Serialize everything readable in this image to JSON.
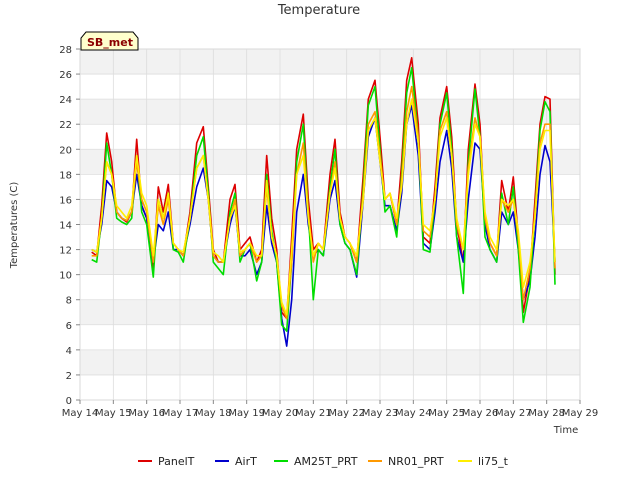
{
  "chart_data": {
    "type": "line",
    "title": "Temperature",
    "xlabel": "Time",
    "ylabel": "Temperatures (C)",
    "site_label": "SB_met",
    "x_ticks": [
      "May 14",
      "May 15",
      "May 16",
      "May 17",
      "May 18",
      "May 19",
      "May 20",
      "May 21",
      "May 22",
      "May 23",
      "May 24",
      "May 25",
      "May 26",
      "May 27",
      "May 28",
      "May 29"
    ],
    "xlim": [
      14,
      29
    ],
    "ylim": [
      0,
      28
    ],
    "y_ticks": [
      "0",
      "2",
      "4",
      "6",
      "8",
      "10",
      "12",
      "14",
      "16",
      "18",
      "20",
      "22",
      "24",
      "26",
      "28"
    ],
    "x": [
      14.35,
      14.5,
      14.65,
      14.8,
      14.95,
      15.1,
      15.25,
      15.4,
      15.55,
      15.7,
      15.85,
      16.0,
      16.2,
      16.35,
      16.5,
      16.65,
      16.8,
      16.95,
      17.1,
      17.3,
      17.5,
      17.7,
      17.85,
      18.0,
      18.15,
      18.3,
      18.5,
      18.65,
      18.8,
      18.95,
      19.1,
      19.3,
      19.45,
      19.6,
      19.75,
      19.9,
      20.05,
      20.2,
      20.35,
      20.5,
      20.7,
      20.85,
      21.0,
      21.15,
      21.3,
      21.5,
      21.65,
      21.8,
      21.95,
      22.1,
      22.3,
      22.5,
      22.65,
      22.85,
      23.0,
      23.15,
      23.3,
      23.5,
      23.65,
      23.8,
      23.95,
      24.15,
      24.3,
      24.5,
      24.65,
      24.8,
      25.0,
      25.15,
      25.3,
      25.5,
      25.65,
      25.85,
      26.0,
      26.15,
      26.3,
      26.5,
      26.65,
      26.85,
      27.0,
      27.15,
      27.3,
      27.5,
      27.65,
      27.8,
      27.95,
      28.1,
      28.25
    ],
    "series": [
      {
        "name": "PanelT",
        "color": "#dd0000",
        "values": [
          11.8,
          11.5,
          15.5,
          21.3,
          19.0,
          15.0,
          14.5,
          14.2,
          15.0,
          20.8,
          15.5,
          14.5,
          10.5,
          17.0,
          15.0,
          17.2,
          12.5,
          12.0,
          11.5,
          15.0,
          20.5,
          21.8,
          17.0,
          12.0,
          11.0,
          11.0,
          16.0,
          17.2,
          12.0,
          12.5,
          13.0,
          11.0,
          12.0,
          19.5,
          14.5,
          12.0,
          7.0,
          6.5,
          13.0,
          20.0,
          22.8,
          16.0,
          12.0,
          12.5,
          12.0,
          18.0,
          20.8,
          15.0,
          13.0,
          12.5,
          11.0,
          18.0,
          24.0,
          25.5,
          21.0,
          16.0,
          16.5,
          14.0,
          19.0,
          25.5,
          27.3,
          22.0,
          13.0,
          12.5,
          17.0,
          22.5,
          25.0,
          21.0,
          14.0,
          11.0,
          20.0,
          25.2,
          22.0,
          14.0,
          12.5,
          11.5,
          17.5,
          15.0,
          17.8,
          13.0,
          7.0,
          10.0,
          16.0,
          22.0,
          24.2,
          24.0,
          10.0
        ]
      },
      {
        "name": "AirT",
        "color": "#0000cc",
        "values": [
          12.0,
          11.8,
          14.0,
          17.5,
          17.0,
          15.0,
          14.5,
          14.3,
          15.0,
          18.0,
          15.5,
          14.5,
          11.0,
          14.0,
          13.5,
          15.0,
          12.0,
          12.0,
          11.5,
          14.0,
          17.0,
          18.5,
          16.0,
          11.5,
          11.0,
          11.0,
          14.0,
          15.5,
          11.5,
          11.5,
          12.0,
          10.0,
          11.0,
          15.5,
          12.5,
          11.0,
          6.5,
          4.3,
          8.0,
          15.0,
          18.0,
          14.0,
          11.5,
          12.0,
          11.5,
          16.0,
          17.5,
          14.0,
          12.5,
          12.0,
          9.8,
          16.0,
          21.0,
          22.5,
          19.0,
          15.5,
          15.5,
          13.5,
          16.5,
          22.0,
          23.5,
          19.5,
          12.5,
          12.0,
          15.0,
          19.0,
          21.5,
          18.5,
          13.0,
          11.0,
          16.0,
          20.5,
          20.0,
          14.0,
          12.0,
          11.0,
          15.0,
          14.0,
          15.0,
          12.0,
          8.0,
          9.5,
          13.0,
          18.0,
          20.3,
          19.0,
          11.0
        ]
      },
      {
        "name": "AM25T_PRT",
        "color": "#00dd00",
        "values": [
          11.2,
          11.0,
          14.5,
          20.5,
          18.0,
          14.5,
          14.2,
          14.0,
          14.5,
          19.5,
          15.0,
          14.0,
          9.8,
          16.0,
          14.5,
          16.5,
          12.0,
          11.8,
          11.0,
          14.5,
          19.5,
          21.0,
          16.5,
          11.0,
          10.5,
          10.0,
          15.0,
          16.5,
          11.0,
          12.0,
          12.5,
          9.5,
          11.0,
          18.0,
          13.5,
          11.0,
          6.0,
          5.5,
          11.0,
          19.0,
          22.0,
          15.0,
          8.0,
          12.0,
          11.5,
          17.0,
          20.0,
          14.0,
          12.5,
          12.0,
          10.0,
          17.0,
          23.5,
          25.0,
          20.0,
          15.0,
          15.5,
          13.0,
          18.0,
          24.5,
          26.5,
          21.0,
          12.0,
          11.8,
          16.0,
          22.0,
          24.5,
          20.0,
          13.0,
          8.5,
          19.0,
          24.8,
          21.0,
          13.0,
          12.0,
          11.0,
          16.5,
          14.0,
          17.0,
          12.0,
          6.2,
          9.0,
          15.0,
          21.5,
          23.8,
          23.0,
          9.2
        ]
      },
      {
        "name": "NR01_PRT",
        "color": "#ff9900",
        "values": [
          11.5,
          11.5,
          14.5,
          19.0,
          18.0,
          15.0,
          14.5,
          14.3,
          15.0,
          19.0,
          16.0,
          15.0,
          11.0,
          15.5,
          14.0,
          16.0,
          12.5,
          12.0,
          11.5,
          14.5,
          18.5,
          19.5,
          16.0,
          11.5,
          11.0,
          11.0,
          14.5,
          16.0,
          11.5,
          12.0,
          12.5,
          11.0,
          11.5,
          17.0,
          13.0,
          11.5,
          7.5,
          6.5,
          11.0,
          18.0,
          20.5,
          15.0,
          11.0,
          12.5,
          12.0,
          16.5,
          19.0,
          14.5,
          13.0,
          12.5,
          11.0,
          16.5,
          22.0,
          23.0,
          19.5,
          16.0,
          16.5,
          14.0,
          17.5,
          23.0,
          25.0,
          21.0,
          13.5,
          13.0,
          16.0,
          21.5,
          23.0,
          19.5,
          14.0,
          12.0,
          18.5,
          22.5,
          21.0,
          14.5,
          12.5,
          11.5,
          16.0,
          15.0,
          16.0,
          13.0,
          8.0,
          10.5,
          15.0,
          20.5,
          22.0,
          22.0,
          10.5
        ]
      },
      {
        "name": "li75_t",
        "color": "#ffee00",
        "values": [
          12.0,
          11.8,
          14.5,
          19.0,
          18.0,
          15.5,
          15.0,
          14.5,
          15.5,
          19.5,
          16.5,
          15.5,
          11.5,
          16.0,
          14.5,
          16.5,
          12.5,
          12.0,
          11.8,
          14.5,
          18.5,
          19.5,
          16.0,
          11.8,
          11.5,
          11.0,
          14.5,
          15.5,
          11.8,
          12.0,
          12.5,
          11.5,
          11.5,
          17.5,
          13.0,
          11.5,
          7.8,
          6.8,
          12.0,
          18.0,
          19.5,
          14.5,
          11.5,
          12.5,
          12.0,
          16.5,
          18.5,
          14.5,
          13.0,
          12.5,
          11.5,
          16.0,
          21.5,
          22.5,
          19.0,
          16.0,
          16.5,
          14.5,
          17.0,
          22.0,
          24.0,
          20.5,
          14.0,
          13.5,
          16.0,
          21.0,
          22.5,
          19.5,
          14.5,
          12.0,
          18.0,
          22.0,
          21.0,
          15.0,
          13.0,
          12.0,
          16.0,
          15.5,
          16.0,
          13.5,
          9.0,
          11.0,
          14.5,
          20.0,
          21.5,
          21.5,
          11.0
        ]
      }
    ],
    "grid": true,
    "legend_position": "bottom"
  }
}
